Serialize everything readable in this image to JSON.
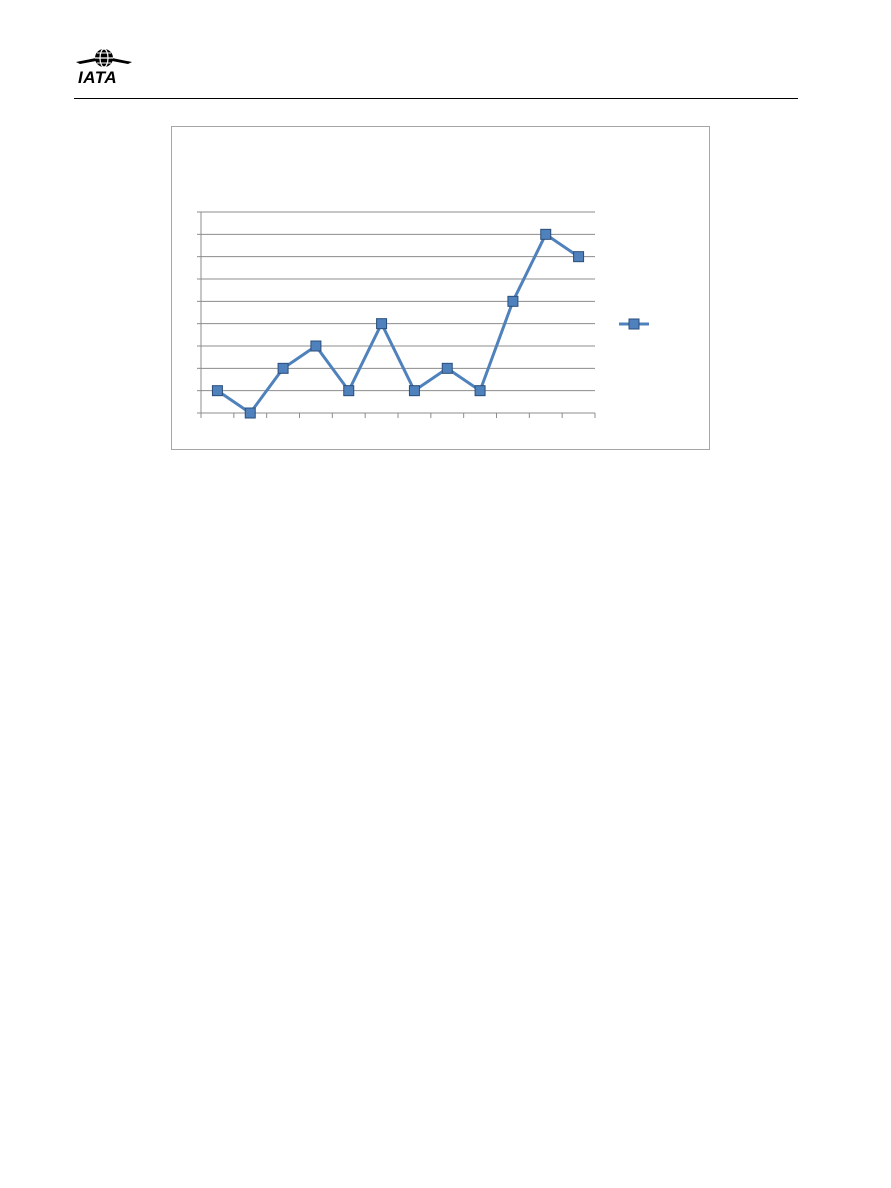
{
  "header": {
    "logo_text": "IATA",
    "logo_icon": "globe-wings-icon"
  },
  "chart_data": {
    "type": "line",
    "title": "",
    "xlabel": "",
    "ylabel": "",
    "categories": [
      "",
      "",
      "",
      "",
      "",
      "",
      "",
      "",
      "",
      "",
      "",
      ""
    ],
    "series": [
      {
        "values": [
          1,
          0,
          2,
          3,
          1,
          4,
          1,
          2,
          1,
          5,
          8,
          7
        ],
        "color": "#4f81bd",
        "marker": "square"
      }
    ],
    "ylim": [
      0,
      9
    ],
    "y_gridlines": 9,
    "grid": true,
    "legend": "right"
  }
}
